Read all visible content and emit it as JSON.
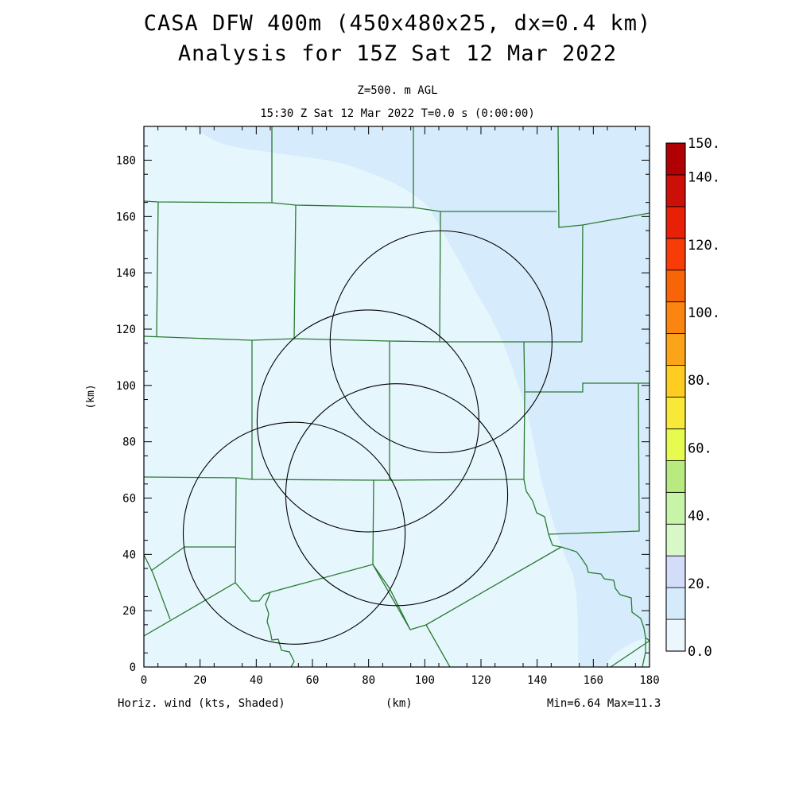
{
  "header": {
    "title_line1": "CASA DFW 400m (450x480x25, dx=0.4 km)",
    "title_line2": "Analysis for 15Z Sat 12 Mar 2022",
    "level": "Z=500. m AGL",
    "valid_time": "15:30 Z Sat 12 Mar 2022   T=0.0 s (0:00:00)"
  },
  "footer": {
    "field_label": "Horiz. wind (kts, Shaded)",
    "x_unit": "(km)",
    "min_max": "Min=6.64 Max=11.3"
  },
  "axes": {
    "y_label": "(km)",
    "x_ticks": [
      "0",
      "20",
      "40",
      "60",
      "80",
      "100",
      "120",
      "140",
      "160",
      "180"
    ],
    "y_ticks": [
      "0",
      "20",
      "40",
      "60",
      "80",
      "100",
      "120",
      "140",
      "160",
      "180"
    ],
    "x_range": [
      0,
      180
    ],
    "y_range": [
      0,
      192
    ]
  },
  "colorbar": {
    "labels": [
      "150.",
      "140.",
      "120.",
      "100.",
      "80.",
      "60.",
      "40.",
      "20.",
      "0.0"
    ],
    "colors": [
      "#ebf7fd",
      "#d5ebfb",
      "#d3dcf8",
      "#d8f8c8",
      "#c8f4a8",
      "#b8ea80",
      "#e6fa50",
      "#f8e838",
      "#ffcc22",
      "#fca418",
      "#fc8410",
      "#f86408",
      "#f83c08",
      "#e82008",
      "#cc1008",
      "#b00004"
    ]
  },
  "map": {
    "field_colors": {
      "low": "#e6f6fd",
      "high": "#d6ebfb"
    },
    "radar_rings": [
      {
        "name": "ring-northeast",
        "cx_km": 105.8,
        "cy_km": 115.5,
        "r_km": 39.5
      },
      {
        "name": "ring-central",
        "cx_km": 79.8,
        "cy_km": 87.4,
        "r_km": 39.5
      },
      {
        "name": "ring-east-central",
        "cx_km": 90.0,
        "cy_km": 61.2,
        "r_km": 39.5
      },
      {
        "name": "ring-southwest",
        "cx_km": 53.5,
        "cy_km": 47.5,
        "r_km": 39.5
      }
    ],
    "line_color": "#2a7a32"
  }
}
